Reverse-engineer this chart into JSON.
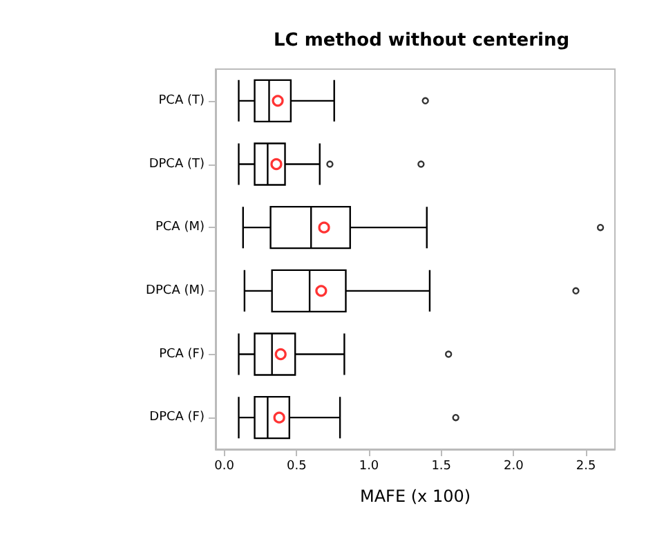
{
  "chart_data": {
    "type": "box",
    "orientation": "horizontal",
    "title": "LC method without centering",
    "xlabel": "MAFE (x 100)",
    "categories": [
      "PCA (T)",
      "DPCA (T)",
      "PCA (M)",
      "DPCA (M)",
      "PCA (F)",
      "DPCA (F)"
    ],
    "color": "#000000",
    "boxes": [
      {
        "low": 0.1,
        "q1": 0.21,
        "median": 0.31,
        "q3": 0.46,
        "high": 0.76,
        "mean": 0.37,
        "outliers": [
          1.39
        ]
      },
      {
        "low": 0.1,
        "q1": 0.21,
        "median": 0.3,
        "q3": 0.42,
        "high": 0.66,
        "mean": 0.36,
        "outliers": [
          0.73,
          1.36
        ]
      },
      {
        "low": 0.13,
        "q1": 0.32,
        "median": 0.6,
        "q3": 0.87,
        "high": 1.4,
        "mean": 0.69,
        "outliers": [
          2.6
        ]
      },
      {
        "low": 0.14,
        "q1": 0.33,
        "median": 0.59,
        "q3": 0.84,
        "high": 1.42,
        "mean": 0.67,
        "outliers": [
          2.43
        ]
      },
      {
        "low": 0.1,
        "q1": 0.21,
        "median": 0.33,
        "q3": 0.49,
        "high": 0.83,
        "mean": 0.39,
        "outliers": [
          1.55
        ]
      },
      {
        "low": 0.1,
        "q1": 0.21,
        "median": 0.3,
        "q3": 0.45,
        "high": 0.8,
        "mean": 0.38,
        "outliers": [
          1.6
        ]
      }
    ],
    "xlim": [
      -0.06,
      2.7
    ],
    "xticks": [
      {
        "value": 0,
        "label": "0.0"
      },
      {
        "value": 0.5,
        "label": "0.5"
      },
      {
        "value": 1,
        "label": "1.0"
      },
      {
        "value": 1.5,
        "label": "1.5"
      },
      {
        "value": 2,
        "label": "2.0"
      },
      {
        "value": 2.5,
        "label": "2.5"
      }
    ],
    "grid": false
  }
}
